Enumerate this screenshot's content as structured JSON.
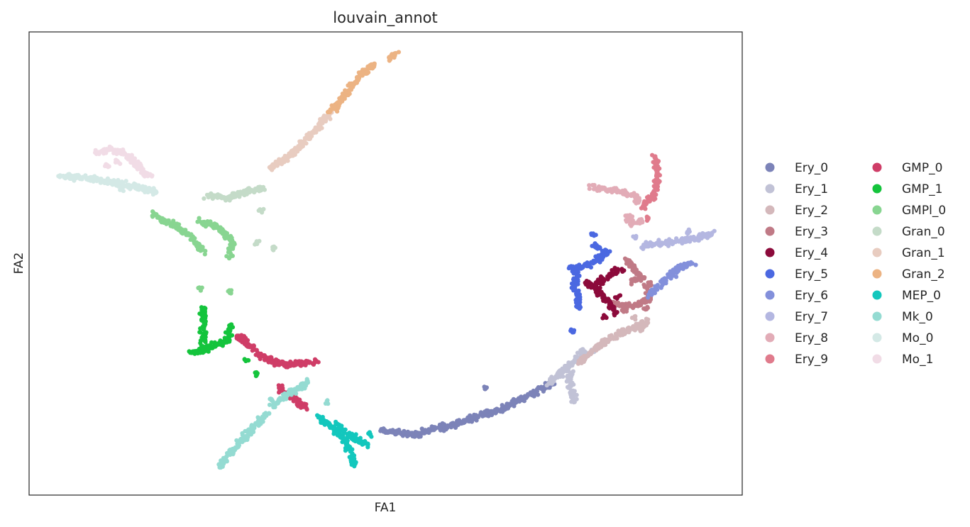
{
  "chart_data": {
    "type": "scatter",
    "title": "louvain_annot",
    "xlabel": "FA1",
    "ylabel": "FA2",
    "xlim": [
      0,
      1000
    ],
    "ylim": [
      0,
      650
    ],
    "grid": false,
    "legend": {
      "placement": "right",
      "columns": 2
    },
    "series": [
      {
        "name": "Ery_0",
        "color": "#7c83b8",
        "paths": [
          [
            [
              495,
              90
            ],
            [
              540,
              85
            ],
            [
              600,
              100
            ],
            [
              660,
              120
            ],
            [
              700,
              140
            ],
            [
              735,
              158
            ]
          ]
        ],
        "extras": [
          [
            [
              640,
              150
            ]
          ]
        ]
      },
      {
        "name": "Ery_1",
        "color": "#c1c2d6",
        "paths": [
          [
            [
              725,
              155
            ],
            [
              750,
              175
            ],
            [
              770,
              192
            ],
            [
              778,
              205
            ]
          ],
          [
            [
              758,
              175
            ],
            [
              760,
              150
            ],
            [
              765,
              130
            ]
          ]
        ],
        "extras": [
          [
            [
              780,
              195
            ],
            [
              792,
              203
            ]
          ]
        ]
      },
      {
        "name": "Ery_2",
        "color": "#d4b8bb",
        "paths": [
          [
            [
              770,
              185
            ],
            [
              800,
              210
            ],
            [
              830,
              228
            ],
            [
              870,
              245
            ]
          ]
        ],
        "extras": [
          [
            [
              848,
              250
            ],
            [
              860,
              232
            ]
          ]
        ]
      },
      {
        "name": "Ery_3",
        "color": "#c07a86",
        "paths": [
          [
            [
              818,
              268
            ],
            [
              848,
              265
            ],
            [
              870,
              275
            ],
            [
              868,
              300
            ]
          ],
          [
            [
              838,
              330
            ],
            [
              860,
              305
            ],
            [
              842,
              300
            ]
          ]
        ],
        "extras": [
          [
            [
              865,
              262
            ],
            [
              835,
              258
            ]
          ]
        ]
      },
      {
        "name": "Ery_4",
        "color": "#8c0a3b",
        "paths": [
          [
            [
              782,
              300
            ],
            [
              800,
              285
            ],
            [
              812,
              270
            ],
            [
              822,
              255
            ]
          ],
          [
            [
              795,
              295
            ],
            [
              815,
              310
            ],
            [
              832,
              318
            ]
          ]
        ],
        "extras": [
          [
            [
              808,
              250
            ],
            [
              826,
              278
            ]
          ]
        ]
      },
      {
        "name": "Ery_5",
        "color": "#4b68e1",
        "paths": [
          [
            [
              760,
              318
            ],
            [
              785,
              322
            ],
            [
              810,
              340
            ],
            [
              790,
              352
            ]
          ],
          [
            [
              768,
              318
            ],
            [
              765,
              300
            ],
            [
              768,
              280
            ],
            [
              772,
              262
            ]
          ]
        ],
        "extras": [
          [
            [
              763,
              230
            ],
            [
              790,
              365
            ]
          ]
        ]
      },
      {
        "name": "Ery_6",
        "color": "#8390db",
        "paths": [
          [
            [
              870,
              280
            ],
            [
              895,
              305
            ],
            [
              915,
              320
            ],
            [
              930,
              325
            ]
          ]
        ],
        "extras": [
          [
            [
              890,
              300
            ]
          ]
        ]
      },
      {
        "name": "Ery_7",
        "color": "#b4b7e1",
        "paths": [
          [
            [
              860,
              350
            ],
            [
              900,
              355
            ],
            [
              935,
              360
            ],
            [
              960,
              368
            ]
          ]
        ],
        "extras": [
          [
            [
              850,
              362
            ],
            [
              925,
              370
            ]
          ]
        ]
      },
      {
        "name": "Ery_8",
        "color": "#e2acb7",
        "paths": [
          [
            [
              790,
              432
            ],
            [
              820,
              428
            ],
            [
              850,
              420
            ],
            [
              855,
              410
            ]
          ],
          [
            [
              838,
              395
            ],
            [
              845,
              380
            ],
            [
              860,
              385
            ]
          ]
        ],
        "extras": [
          [
            [
              850,
              420
            ]
          ]
        ]
      },
      {
        "name": "Ery_9",
        "color": "#e07b8c",
        "paths": [
          [
            [
              860,
              402
            ],
            [
              875,
              420
            ],
            [
              882,
              445
            ],
            [
              878,
              475
            ]
          ]
        ],
        "extras": [
          [
            [
              868,
              388
            ]
          ]
        ]
      },
      {
        "name": "GMP_0",
        "color": "#cf3d67",
        "paths": [
          [
            [
              290,
              225
            ],
            [
              330,
              192
            ],
            [
              360,
              182
            ],
            [
              405,
              187
            ]
          ],
          [
            [
              350,
              150
            ],
            [
              372,
              135
            ],
            [
              390,
              122
            ]
          ]
        ],
        "extras": [
          [
            [
              300,
              220
            ]
          ]
        ]
      },
      {
        "name": "GMP_1",
        "color": "#14c43c",
        "paths": [
          [
            [
              225,
              198
            ],
            [
              250,
              205
            ],
            [
              278,
              218
            ],
            [
              282,
              235
            ]
          ],
          [
            [
              245,
              212
            ],
            [
              245,
              240
            ],
            [
              245,
              265
            ]
          ]
        ],
        "extras": [
          [
            [
              305,
              190
            ],
            [
              318,
              170
            ]
          ]
        ]
      },
      {
        "name": "GMPl_0",
        "color": "#88d591",
        "paths": [
          [
            [
              172,
              395
            ],
            [
              205,
              378
            ],
            [
              230,
              360
            ],
            [
              246,
              340
            ]
          ],
          [
            [
              240,
              385
            ],
            [
              265,
              375
            ],
            [
              285,
              358
            ],
            [
              282,
              335
            ]
          ]
        ],
        "extras": [
          [
            [
              282,
              285
            ],
            [
              240,
              290
            ]
          ]
        ]
      },
      {
        "name": "Gran_0",
        "color": "#c4dbc8",
        "paths": [
          [
            [
              250,
              420
            ],
            [
              280,
              418
            ],
            [
              305,
              425
            ],
            [
              330,
              432
            ]
          ]
        ],
        "extras": [
          [
            [
              320,
              355
            ],
            [
              345,
              348
            ],
            [
              325,
              400
            ]
          ]
        ]
      },
      {
        "name": "Gran_1",
        "color": "#e8ccc0",
        "paths": [
          [
            [
              340,
              460
            ],
            [
              370,
              480
            ],
            [
              395,
              505
            ],
            [
              420,
              535
            ]
          ]
        ],
        "extras": [
          [
            [
              360,
              470
            ]
          ]
        ]
      },
      {
        "name": "Gran_2",
        "color": "#ecb383",
        "paths": [
          [
            [
              428,
              540
            ],
            [
              445,
              565
            ],
            [
              465,
              590
            ],
            [
              485,
              605
            ]
          ],
          [
            [
              505,
              612
            ],
            [
              515,
              620
            ]
          ]
        ],
        "extras": [
          [
            [
              420,
              540
            ]
          ]
        ]
      },
      {
        "name": "MEP_0",
        "color": "#13c7bd",
        "paths": [
          [
            [
              405,
              110
            ],
            [
              425,
              95
            ],
            [
              440,
              80
            ],
            [
              452,
              60
            ],
            [
              455,
              42
            ]
          ],
          [
            [
              430,
              100
            ],
            [
              455,
              80
            ],
            [
              475,
              70
            ]
          ]
        ],
        "extras": [
          [
            [
              478,
              85
            ]
          ]
        ]
      },
      {
        "name": "Mk_0",
        "color": "#94dbd2",
        "paths": [
          [
            [
              268,
              40
            ],
            [
              290,
              68
            ],
            [
              315,
              96
            ],
            [
              335,
              115
            ]
          ],
          [
            [
              340,
              125
            ],
            [
              360,
              140
            ],
            [
              395,
              160
            ]
          ]
        ],
        "extras": [
          [
            [
              418,
              130
            ],
            [
              340,
              135
            ]
          ]
        ]
      },
      {
        "name": "Mo_0",
        "color": "#d4e9e6",
        "paths": [
          [
            [
              42,
              448
            ],
            [
              80,
              445
            ],
            [
              115,
              440
            ],
            [
              145,
              433
            ],
            [
              180,
              425
            ]
          ]
        ],
        "extras": [
          [
            [
              130,
              430
            ]
          ]
        ]
      },
      {
        "name": "Mo_1",
        "color": "#f1dce6",
        "paths": [
          [
            [
              96,
              480
            ],
            [
              115,
              485
            ],
            [
              135,
              480
            ],
            [
              148,
              468
            ],
            [
              160,
              452
            ],
            [
              172,
              448
            ]
          ]
        ],
        "extras": [
          [
            [
              108,
              462
            ],
            [
              125,
              468
            ]
          ]
        ]
      }
    ]
  }
}
